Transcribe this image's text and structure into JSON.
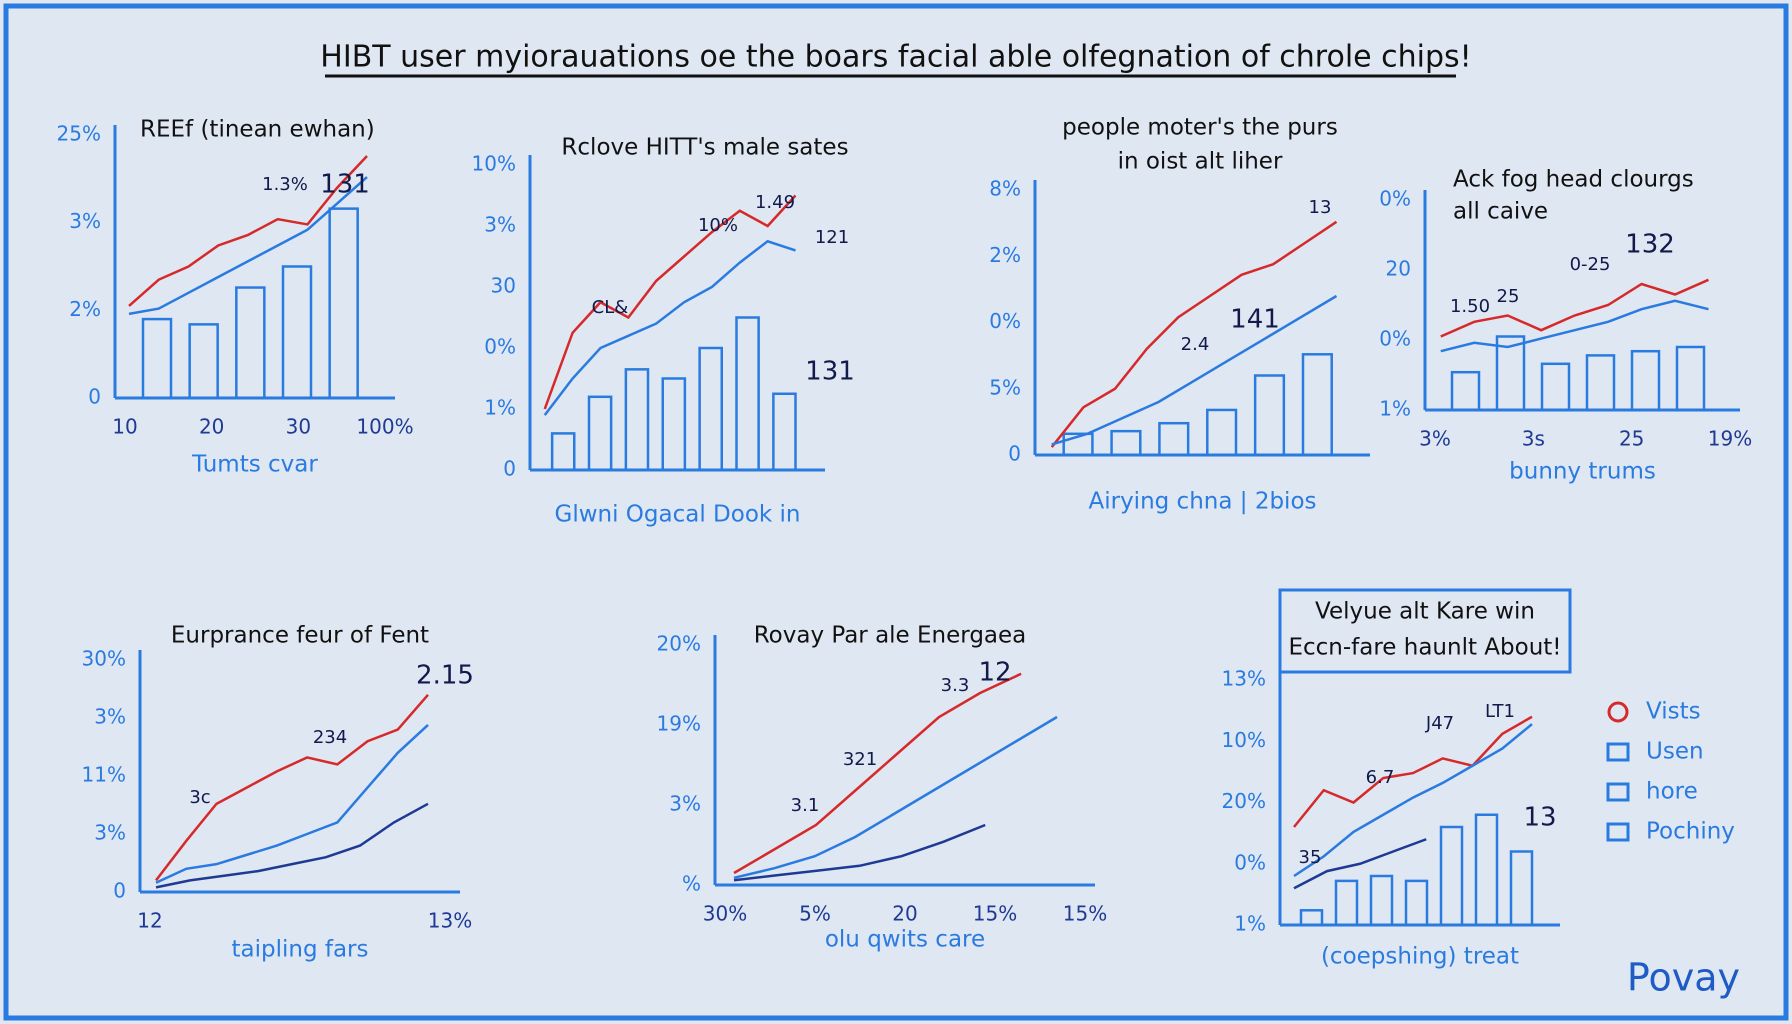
{
  "title": "HIBT user myiorauations oe the boars facial able olfegnation of chrole chips!",
  "panels": [
    {
      "title": [
        "REEf (tinean ewhan)"
      ],
      "y_labels": [
        "25%",
        "3%",
        "2%",
        "0"
      ],
      "x_labels": [
        "10",
        "20",
        "30",
        "100%"
      ],
      "x_label": "Tumts cvar",
      "annotations": [
        "1.3%",
        "131"
      ],
      "bars": [
        30,
        28,
        42,
        50,
        72
      ],
      "series": [
        {
          "color": "#d62a2a",
          "values": [
            35,
            45,
            50,
            58,
            62,
            68,
            66,
            80,
            92
          ]
        },
        {
          "color": "#2a7be0",
          "values": [
            32,
            34,
            40,
            46,
            52,
            58,
            64,
            74,
            84
          ]
        }
      ]
    },
    {
      "title": [
        "Rclove HITT's male sates"
      ],
      "y_labels": [
        "10%",
        "3%",
        "30",
        "0%",
        "1%",
        "0"
      ],
      "x_labels": [],
      "x_label": "Glwni Ogacal Dook in",
      "annotations": [
        "CL&",
        "10%",
        "1.49",
        "121",
        "131"
      ],
      "bars": [
        12,
        24,
        33,
        30,
        40,
        50,
        25
      ],
      "series": [
        {
          "color": "#d62a2a",
          "values": [
            20,
            45,
            55,
            50,
            62,
            70,
            78,
            85,
            80,
            90
          ]
        },
        {
          "color": "#2a7be0",
          "values": [
            18,
            30,
            40,
            44,
            48,
            55,
            60,
            68,
            75,
            72
          ]
        }
      ]
    },
    {
      "title": [
        "people moter's the purs",
        "in oist alt liher"
      ],
      "y_labels": [
        "8%",
        "2%",
        "0%",
        "5%",
        "0"
      ],
      "x_labels": [],
      "x_label": "Airying chna | 2bios",
      "annotations": [
        "13",
        "2.4",
        "141"
      ],
      "bars": [
        8,
        9,
        12,
        17,
        30,
        38
      ],
      "series": [
        {
          "color": "#d62a2a",
          "values": [
            3,
            18,
            25,
            40,
            52,
            60,
            68,
            72,
            80,
            88
          ]
        },
        {
          "color": "#2a7be0",
          "values": [
            4,
            8,
            14,
            20,
            28,
            36,
            44,
            52,
            60
          ]
        }
      ]
    },
    {
      "title": [
        "Ack fog head clourgs",
        "all caive"
      ],
      "y_labels": [
        "0%",
        "20",
        "0%",
        "1%"
      ],
      "x_labels": [
        "3%",
        "3s",
        "25",
        "19%"
      ],
      "x_label": "bunny trums",
      "annotations": [
        "1.50",
        "25",
        "0-25",
        "132"
      ],
      "bars": [
        18,
        35,
        22,
        26,
        28,
        30
      ],
      "series": [
        {
          "color": "#d62a2a",
          "values": [
            35,
            42,
            45,
            38,
            45,
            50,
            60,
            55,
            62
          ]
        },
        {
          "color": "#2a7be0",
          "values": [
            28,
            32,
            30,
            34,
            38,
            42,
            48,
            52,
            48
          ]
        }
      ]
    },
    {
      "title": [
        "Eurprance feur of Fent"
      ],
      "y_labels": [
        "30%",
        "3%",
        "11%",
        "3%",
        "0"
      ],
      "x_labels": [
        "12",
        "13%"
      ],
      "x_label": "taipling fars",
      "annotations": [
        "3c",
        "234",
        "2.15"
      ],
      "bars": [],
      "series": [
        {
          "color": "#d62a2a",
          "values": [
            5,
            22,
            38,
            45,
            52,
            58,
            55,
            65,
            70,
            85
          ]
        },
        {
          "color": "#2a7be0",
          "values": [
            4,
            10,
            12,
            16,
            20,
            25,
            30,
            45,
            60,
            72
          ]
        },
        {
          "color": "#1f3a93",
          "values": [
            2,
            5,
            7,
            9,
            12,
            15,
            20,
            30,
            38
          ]
        }
      ]
    },
    {
      "title": [
        "Rovay Par ale Energaea"
      ],
      "y_labels": [
        "20%",
        "19%",
        "3%",
        "%"
      ],
      "x_labels": [
        "30%",
        "5%",
        "20",
        "15%",
        "15%"
      ],
      "x_label": "olu qwits care",
      "annotations": [
        "3.1",
        "321",
        "3.3",
        "12"
      ],
      "bars": [],
      "series": [
        {
          "color": "#d62a2a",
          "values": [
            5,
            15,
            25,
            40,
            55,
            70,
            80,
            88
          ]
        },
        {
          "color": "#2a7be0",
          "values": [
            3,
            7,
            12,
            20,
            30,
            40,
            50,
            60,
            70
          ]
        },
        {
          "color": "#1f3a93",
          "values": [
            2,
            4,
            6,
            8,
            12,
            18,
            25
          ]
        }
      ]
    },
    {
      "title": [
        "Velyue alt Kare win",
        "Eccn-fare haunlt About!"
      ],
      "y_labels": [
        "13%",
        "10%",
        "20%",
        "0%",
        "1%"
      ],
      "x_labels": [],
      "x_label": "(coepshing) treat",
      "annotations": [
        "35",
        "6.7",
        "J47",
        "LT1",
        "13"
      ],
      "bars": [
        6,
        18,
        20,
        18,
        40,
        45,
        30
      ],
      "series": [
        {
          "color": "#d62a2a",
          "values": [
            40,
            55,
            50,
            60,
            62,
            68,
            65,
            78,
            85
          ]
        },
        {
          "color": "#2a7be0",
          "values": [
            20,
            28,
            38,
            45,
            52,
            58,
            65,
            72,
            82
          ]
        },
        {
          "color": "#1f3a93",
          "values": [
            15,
            22,
            25,
            30,
            35
          ]
        }
      ]
    }
  ],
  "legend": [
    "Vists",
    "Usen",
    "hore",
    "Pochiny"
  ],
  "signature": "Povay"
}
